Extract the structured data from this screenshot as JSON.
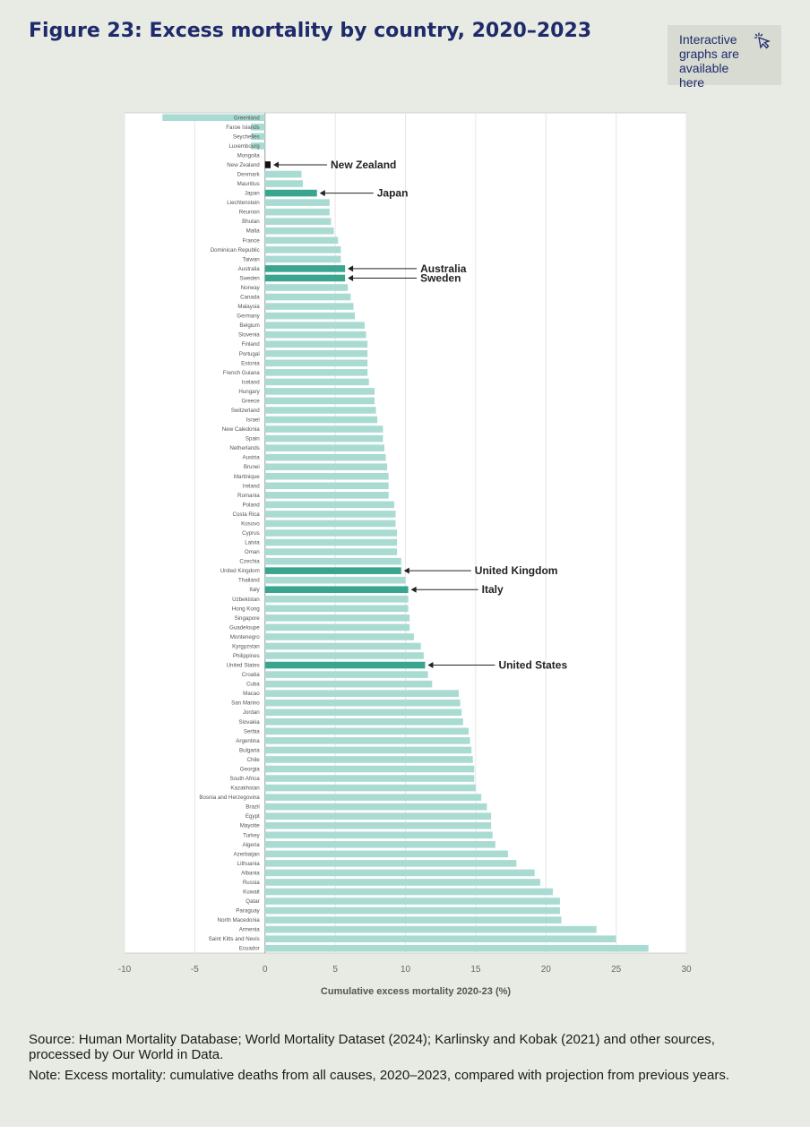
{
  "header": {
    "title": "Figure 23: Excess mortality by country, 2020–2023",
    "interactive_label": "Interactive graphs are available here",
    "interactive_icon": "pointer-click-icon"
  },
  "chart_data": {
    "type": "bar",
    "orientation": "horizontal",
    "xlabel": "Cumulative excess mortality 2020-23 (%)",
    "xlim": [
      -10,
      30
    ],
    "xticks": [
      -10,
      -5,
      0,
      5,
      10,
      15,
      20,
      25,
      30
    ],
    "grid": true,
    "colors": {
      "default": "#a9dbd2",
      "highlight": "#3aa58f",
      "new_zealand": "#111111"
    },
    "categories": [
      "Greenland",
      "Faroe Islands",
      "Seychelles",
      "Luxembourg",
      "Mongolia",
      "New Zealand",
      "Denmark",
      "Mauritius",
      "Japan",
      "Liechtenstein",
      "Reunion",
      "Bhutan",
      "Malta",
      "France",
      "Dominican Republic",
      "Taiwan",
      "Australia",
      "Sweden",
      "Norway",
      "Canada",
      "Malaysia",
      "Germany",
      "Belgium",
      "Slovenia",
      "Finland",
      "Portugal",
      "Estonia",
      "French Guiana",
      "Iceland",
      "Hungary",
      "Greece",
      "Switzerland",
      "Israel",
      "New Caledonia",
      "Spain",
      "Netherlands",
      "Austria",
      "Brunei",
      "Martinique",
      "Ireland",
      "Romania",
      "Poland",
      "Costa Rica",
      "Kosovo",
      "Cyprus",
      "Latvia",
      "Oman",
      "Czechia",
      "United Kingdom",
      "Thailand",
      "Italy",
      "Uzbekistan",
      "Hong Kong",
      "Singapore",
      "Guadeloupe",
      "Montenegro",
      "Kyrgyzstan",
      "Philippines",
      "United States",
      "Croatia",
      "Cuba",
      "Macao",
      "San Marino",
      "Jordan",
      "Slovakia",
      "Serbia",
      "Argentina",
      "Bulgaria",
      "Chile",
      "Georgia",
      "South Africa",
      "Kazakhstan",
      "Bosnia and Herzegovina",
      "Brazil",
      "Egypt",
      "Mayotte",
      "Turkey",
      "Algeria",
      "Azerbaijan",
      "Lithuania",
      "Albania",
      "Russia",
      "Kuwait",
      "Qatar",
      "Paraguay",
      "North Macedonia",
      "Armenia",
      "Saint Kitts and Nevis",
      "Ecuador"
    ],
    "values": [
      -7.3,
      -1.0,
      -1.0,
      -1.0,
      0.0,
      0.4,
      2.6,
      2.7,
      3.7,
      4.6,
      4.6,
      4.7,
      4.9,
      5.2,
      5.4,
      5.4,
      5.7,
      5.7,
      5.9,
      6.1,
      6.3,
      6.4,
      7.1,
      7.2,
      7.3,
      7.3,
      7.3,
      7.3,
      7.4,
      7.8,
      7.8,
      7.9,
      8.0,
      8.4,
      8.4,
      8.5,
      8.6,
      8.7,
      8.8,
      8.8,
      8.8,
      9.2,
      9.3,
      9.3,
      9.4,
      9.4,
      9.4,
      9.7,
      9.7,
      10.0,
      10.2,
      10.2,
      10.2,
      10.3,
      10.3,
      10.6,
      11.1,
      11.3,
      11.4,
      11.6,
      11.9,
      13.8,
      13.9,
      14.0,
      14.1,
      14.5,
      14.6,
      14.7,
      14.8,
      14.9,
      14.9,
      15.0,
      15.4,
      15.8,
      16.1,
      16.1,
      16.2,
      16.4,
      17.3,
      17.9,
      19.2,
      19.6,
      20.5,
      21.0,
      21.0,
      21.1,
      23.6,
      25.0,
      27.3
    ],
    "highlighted": [
      "Japan",
      "Australia",
      "Sweden",
      "United Kingdom",
      "Italy",
      "United States"
    ],
    "annotations": [
      {
        "country": "New Zealand",
        "label": "New Zealand"
      },
      {
        "country": "Japan",
        "label": "Japan"
      },
      {
        "country": "Australia",
        "label": "Australia"
      },
      {
        "country": "Sweden",
        "label": "Sweden"
      },
      {
        "country": "United Kingdom",
        "label": "United Kingdom"
      },
      {
        "country": "Italy",
        "label": "Italy"
      },
      {
        "country": "United States",
        "label": "United States"
      }
    ]
  },
  "footer": {
    "source": "Source: Human Mortality Database; World Mortality Dataset (2024); Karlinsky and Kobak (2021) and other sources, processed by Our World in Data.",
    "note": "Note: Excess mortality: cumulative deaths from all causes, 2020–2023, compared with projection from previous years."
  }
}
